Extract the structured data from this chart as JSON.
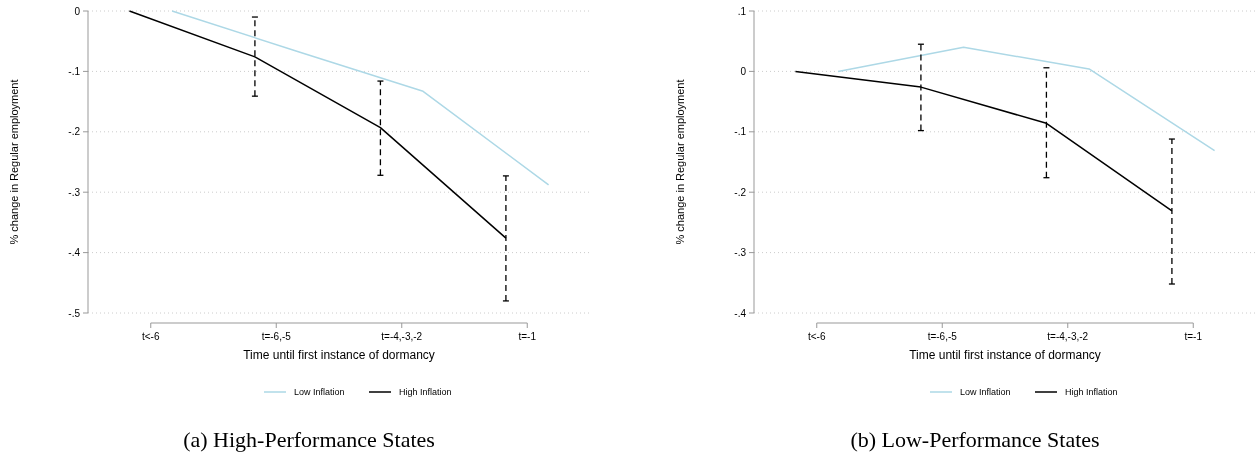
{
  "chart_data": [
    {
      "type": "line",
      "title": "(a) High-Performance States",
      "xlabel": "Time until first instance of dormancy",
      "ylabel": "% change in Regular employment",
      "categories": [
        "t<-6",
        "t=-6,-5",
        "t=-4,-3,-2",
        "t=-1"
      ],
      "ylim": [
        -0.5,
        0
      ],
      "yticks": [
        {
          "value": -0.5,
          "label": "-.5"
        },
        {
          "value": -0.4,
          "label": "-.4"
        },
        {
          "value": -0.3,
          "label": "-.3"
        },
        {
          "value": -0.2,
          "label": "-.2"
        },
        {
          "value": -0.1,
          "label": "-.1"
        },
        {
          "value": 0,
          "label": "0"
        }
      ],
      "grid": "y",
      "legend": "bottom",
      "series": [
        {
          "name": "Low Inflation",
          "color": "#add8e6",
          "values": [
            0,
            -0.067,
            -0.133,
            -0.288
          ]
        },
        {
          "name": "High Inflation",
          "color": "#000000",
          "values": [
            0,
            -0.076,
            -0.193,
            -0.376
          ],
          "errors": [
            null,
            [
              -0.141,
              -0.01
            ],
            [
              -0.272,
              -0.116
            ],
            [
              -0.48,
              -0.273
            ]
          ]
        }
      ]
    },
    {
      "type": "line",
      "title": "(b) Low-Performance States",
      "xlabel": "Time until first instance of dormancy",
      "ylabel": "% change in Regular employment",
      "categories": [
        "t<-6",
        "t=-6,-5",
        "t=-4,-3,-2",
        "t=-1"
      ],
      "ylim": [
        -0.4,
        0.1
      ],
      "yticks": [
        {
          "value": -0.4,
          "label": "-.4"
        },
        {
          "value": -0.3,
          "label": "-.3"
        },
        {
          "value": -0.2,
          "label": "-.2"
        },
        {
          "value": -0.1,
          "label": "-.1"
        },
        {
          "value": 0,
          "label": "0"
        },
        {
          "value": 0.1,
          "label": ".1"
        }
      ],
      "grid": "y",
      "legend": "bottom",
      "series": [
        {
          "name": "Low Inflation",
          "color": "#add8e6",
          "values": [
            0,
            0.04,
            0.004,
            -0.131
          ]
        },
        {
          "name": "High Inflation",
          "color": "#000000",
          "values": [
            0,
            -0.026,
            -0.086,
            -0.231
          ],
          "errors": [
            null,
            [
              -0.098,
              0.045
            ],
            [
              -0.176,
              0.006
            ],
            [
              -0.352,
              -0.112
            ]
          ]
        }
      ]
    }
  ]
}
